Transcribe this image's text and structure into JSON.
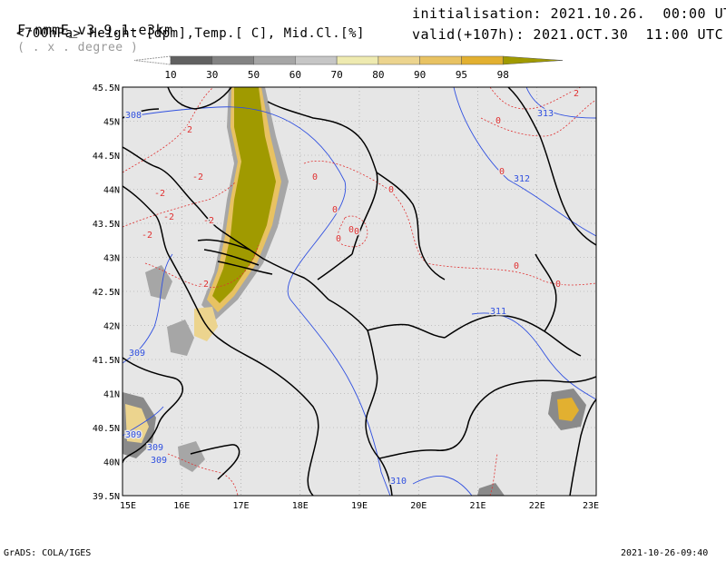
{
  "header": {
    "model": "F-nmmE_v3.9.1-e3km",
    "unit_hint": "( . x . degree )",
    "variables": "<700hPa> Height [dpm],Temp.[ C], Mid.Cl.[%]",
    "init": "initialisation: 2021.10.26.  00:00 UTC",
    "valid": "valid(+107h): 2021.OCT.30  11:00 UTC"
  },
  "colorbar": {
    "levels": [
      "10",
      "30",
      "50",
      "60",
      "70",
      "80",
      "90",
      "95",
      "98"
    ],
    "colors": [
      "#616161",
      "#838383",
      "#a6a6a6",
      "#c6c6c6",
      "#eeeab0",
      "#ecd48e",
      "#e8c262",
      "#e2b030",
      "#a09a00"
    ]
  },
  "axes": {
    "x_ticks": [
      "15E",
      "16E",
      "17E",
      "18E",
      "19E",
      "20E",
      "21E",
      "22E",
      "23E"
    ],
    "y_ticks": [
      "45.5N",
      "45N",
      "44.5N",
      "44N",
      "43.5N",
      "43N",
      "42.5N",
      "42N",
      "41.5N",
      "41N",
      "40.5N",
      "40N",
      "39.5N"
    ]
  },
  "contour_labels": {
    "height": [
      "308",
      "309",
      "309",
      "309",
      "309",
      "310",
      "311",
      "312",
      "313"
    ],
    "temperature": [
      "-2",
      "-2",
      "-2",
      "-2",
      "-2",
      "-2",
      "-2",
      "0",
      "0",
      "0",
      "0",
      "0",
      "0",
      "0",
      "0",
      "0",
      "0",
      "2"
    ]
  },
  "colors": {
    "map_bg": "#e6e6e6",
    "height_line": "#3050e0",
    "temp_line": "#e03030",
    "border": "#000000",
    "grid": "#9a9a9a"
  },
  "footer": {
    "left": "GrADS: COLA/IGES",
    "right": "2021-10-26-09:40"
  }
}
